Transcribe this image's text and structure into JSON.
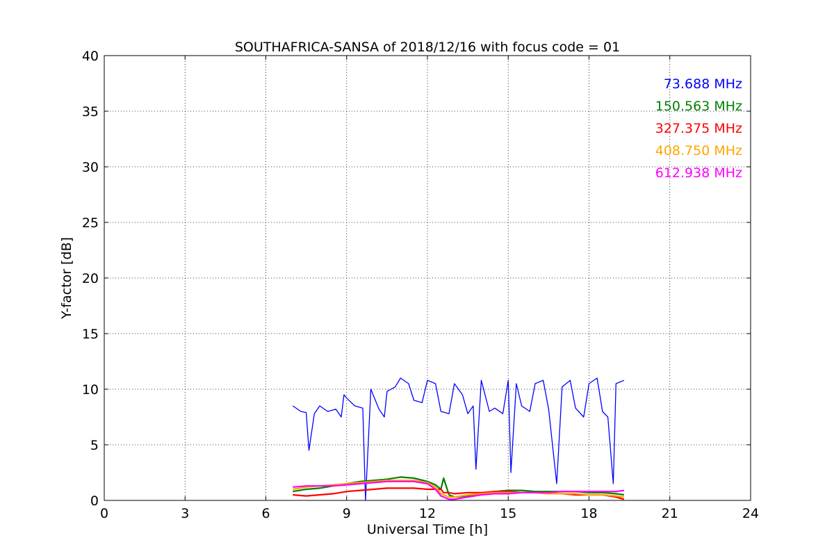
{
  "chart_data": {
    "type": "line",
    "title": "SOUTHAFRICA-SANSA of 2018/12/16 with focus code = 01",
    "xlabel": "Universal Time [h]",
    "ylabel": "Y-factor [dB]",
    "xlim": [
      0,
      24
    ],
    "ylim": [
      0,
      40
    ],
    "xticks": [
      0,
      3,
      6,
      9,
      12,
      15,
      18,
      21,
      24
    ],
    "yticks": [
      0,
      5,
      10,
      15,
      20,
      25,
      30,
      35,
      40
    ],
    "grid": true,
    "legend_position": "top-right",
    "series": [
      {
        "name": "73.688 MHz",
        "color": "#0000ff",
        "x": [
          7.0,
          7.3,
          7.5,
          7.6,
          7.8,
          8.0,
          8.3,
          8.6,
          8.8,
          8.9,
          9.0,
          9.3,
          9.6,
          9.7,
          9.9,
          10.2,
          10.4,
          10.5,
          10.8,
          11.0,
          11.3,
          11.5,
          11.8,
          12.0,
          12.3,
          12.5,
          12.8,
          13.0,
          13.3,
          13.5,
          13.7,
          13.8,
          14.0,
          14.3,
          14.5,
          14.8,
          15.0,
          15.1,
          15.3,
          15.5,
          15.8,
          16.0,
          16.3,
          16.5,
          16.8,
          17.0,
          17.3,
          17.5,
          17.8,
          18.0,
          18.3,
          18.5,
          18.7,
          18.9,
          19.0,
          19.3
        ],
        "y": [
          8.5,
          8.0,
          7.9,
          4.5,
          7.8,
          8.5,
          8.0,
          8.2,
          7.5,
          9.5,
          9.2,
          8.5,
          8.3,
          0.0,
          10.0,
          8.2,
          7.5,
          9.8,
          10.2,
          11.0,
          10.5,
          9.0,
          8.8,
          10.8,
          10.5,
          8.0,
          7.8,
          10.5,
          9.5,
          7.8,
          8.5,
          2.8,
          10.8,
          8.0,
          8.3,
          7.8,
          10.8,
          2.5,
          10.5,
          8.5,
          8.0,
          10.5,
          10.8,
          8.2,
          1.5,
          10.2,
          10.8,
          8.3,
          7.5,
          10.5,
          11.0,
          8.0,
          7.5,
          1.5,
          10.5,
          10.8
        ]
      },
      {
        "name": "150.563 MHz",
        "color": "#008000",
        "x": [
          7.0,
          7.5,
          8.0,
          8.5,
          9.0,
          9.5,
          10.0,
          10.5,
          11.0,
          11.5,
          12.0,
          12.3,
          12.5,
          12.6,
          12.8,
          13.0,
          13.5,
          14.0,
          14.5,
          15.0,
          15.5,
          16.0,
          16.5,
          17.0,
          17.5,
          18.0,
          18.5,
          19.0,
          19.3
        ],
        "y": [
          0.8,
          1.0,
          1.1,
          1.3,
          1.5,
          1.7,
          1.8,
          1.9,
          2.1,
          2.0,
          1.7,
          1.4,
          1.0,
          2.0,
          0.5,
          0.3,
          0.4,
          0.6,
          0.8,
          0.9,
          0.9,
          0.8,
          0.8,
          0.8,
          0.8,
          0.7,
          0.7,
          0.6,
          0.5
        ]
      },
      {
        "name": "327.375 MHz",
        "color": "#ff0000",
        "x": [
          7.0,
          7.5,
          8.0,
          8.5,
          9.0,
          9.5,
          10.0,
          10.5,
          11.0,
          11.5,
          12.0,
          12.3,
          12.5,
          12.6,
          12.8,
          13.0,
          13.5,
          14.0,
          14.5,
          15.0,
          15.5,
          16.0,
          16.5,
          17.0,
          17.5,
          18.0,
          18.5,
          19.0,
          19.3
        ],
        "y": [
          0.5,
          0.4,
          0.5,
          0.6,
          0.8,
          0.9,
          1.0,
          1.1,
          1.1,
          1.1,
          1.0,
          1.0,
          1.0,
          0.7,
          0.7,
          0.6,
          0.7,
          0.7,
          0.8,
          0.8,
          0.7,
          0.7,
          0.6,
          0.6,
          0.5,
          0.5,
          0.5,
          0.3,
          0.1
        ]
      },
      {
        "name": "408.750 MHz",
        "color": "#ffa500",
        "x": [
          7.0,
          7.5,
          8.0,
          8.5,
          9.0,
          9.5,
          10.0,
          10.5,
          11.0,
          11.5,
          12.0,
          12.3,
          12.5,
          12.8,
          13.0,
          13.5,
          14.0,
          14.5,
          15.0,
          15.5,
          16.0,
          16.5,
          17.0,
          17.5,
          18.0,
          18.5,
          19.0,
          19.3
        ],
        "y": [
          1.0,
          1.2,
          1.3,
          1.4,
          1.5,
          1.6,
          1.7,
          1.8,
          1.8,
          1.8,
          1.6,
          1.2,
          0.6,
          0.3,
          0.3,
          0.5,
          0.6,
          0.7,
          0.7,
          0.7,
          0.7,
          0.6,
          0.6,
          0.6,
          0.5,
          0.5,
          0.4,
          0.3
        ]
      },
      {
        "name": "612.938 MHz",
        "color": "#ff00ff",
        "x": [
          7.0,
          7.5,
          8.0,
          8.5,
          9.0,
          9.5,
          10.0,
          10.5,
          11.0,
          11.5,
          12.0,
          12.3,
          12.5,
          12.8,
          13.0,
          13.5,
          14.0,
          14.5,
          15.0,
          15.5,
          16.0,
          16.5,
          17.0,
          17.5,
          18.0,
          18.5,
          19.0,
          19.3
        ],
        "y": [
          1.2,
          1.3,
          1.3,
          1.3,
          1.4,
          1.5,
          1.6,
          1.7,
          1.7,
          1.7,
          1.5,
          1.0,
          0.4,
          0.1,
          0.1,
          0.3,
          0.5,
          0.6,
          0.6,
          0.7,
          0.7,
          0.7,
          0.8,
          0.8,
          0.8,
          0.8,
          0.8,
          0.9
        ]
      }
    ]
  }
}
